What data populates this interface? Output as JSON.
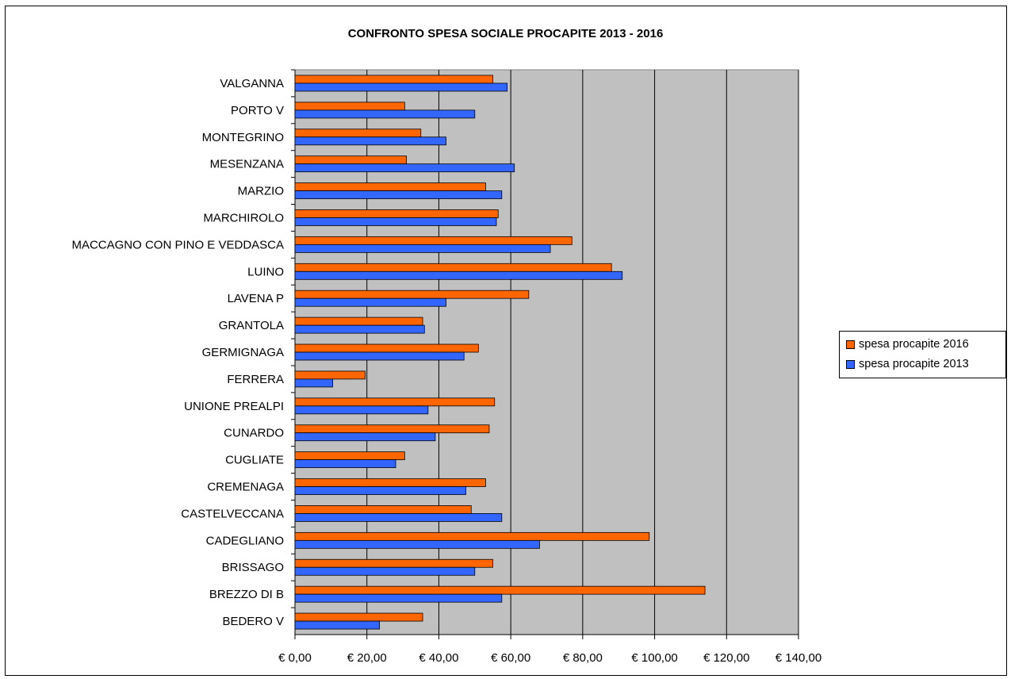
{
  "chart_data": {
    "type": "bar",
    "orientation": "horizontal",
    "title": "CONFRONTO SPESA SOCIALE PROCAPITE 2013 - 2016",
    "categories": [
      "VALGANNA",
      "PORTO V",
      "MONTEGRINO",
      "MESENZANA",
      "MARZIO",
      "MARCHIROLO",
      "MACCAGNO CON PINO E VEDDASCA",
      "LUINO",
      "LAVENA P",
      "GRANTOLA",
      "GERMIGNAGA",
      "FERRERA",
      "UNIONE PREALPI",
      "CUNARDO",
      "CUGLIATE",
      "CREMENAGA",
      "CASTELVECCANA",
      "CADEGLIANO",
      "BRISSAGO",
      "BREZZO DI B",
      "BEDERO V"
    ],
    "series": [
      {
        "name": "spesa procapite 2016",
        "color": "#ff6600",
        "values": [
          55,
          30.5,
          35,
          31,
          53,
          56.5,
          77,
          88,
          65,
          35.5,
          51,
          19.5,
          55.5,
          54,
          30.5,
          53,
          49,
          98.5,
          55,
          114,
          35.5
        ]
      },
      {
        "name": "spesa procapite 2013",
        "color": "#3366ff",
        "values": [
          59,
          50,
          42,
          61,
          57.5,
          56,
          71,
          91,
          42,
          36,
          47,
          10.5,
          37,
          39,
          28,
          47.5,
          57.5,
          68,
          50,
          57.5,
          23.5
        ]
      }
    ],
    "xlim": [
      0,
      140
    ],
    "x_ticks": [
      "€ 0,00",
      "€ 20,00",
      "€ 40,00",
      "€ 60,00",
      "€ 80,00",
      "€ 100,00",
      "€ 120,00",
      "€ 140,00"
    ],
    "grid": true,
    "plot_background": "#c0c0c0",
    "legend_position": "right"
  }
}
